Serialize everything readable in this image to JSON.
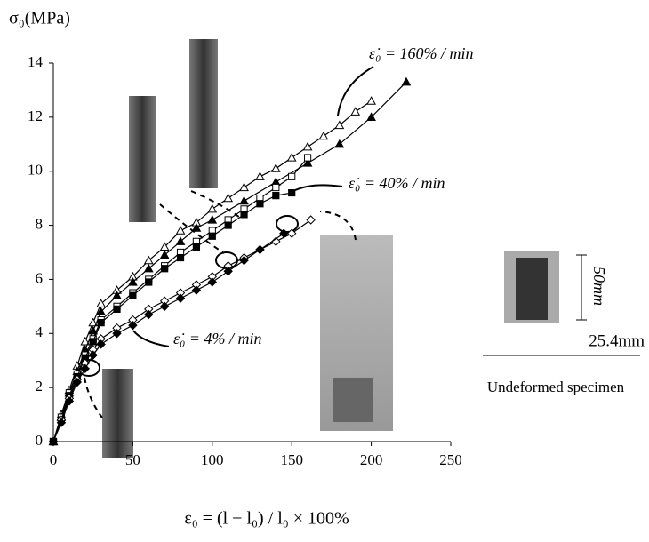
{
  "chart_data": {
    "type": "line",
    "y_label": "σ₀(MPa)",
    "x_label": "ε₀ = (l − l₀) / l₀ × 100%",
    "annotations": [
      "ε̇₀ = 160% / min",
      "ε̇₀ = 40% / min",
      "ε̇₀ = 4% / min",
      "50mm",
      "25.4mm",
      "Undeformed specimen"
    ],
    "xlim": [
      0,
      250
    ],
    "xticks": [
      0,
      50,
      100,
      150,
      200,
      250
    ],
    "ylim": [
      0,
      14
    ],
    "yticks": [
      0,
      2,
      4,
      6,
      8,
      10,
      12,
      14
    ],
    "grid": false,
    "series": [
      {
        "color": "#000000",
        "marker": "triangle",
        "filled": false,
        "x": [
          0,
          5,
          10,
          15,
          20,
          25,
          30,
          40,
          50,
          60,
          70,
          80,
          90,
          100,
          110,
          120,
          130,
          140,
          150,
          160,
          170,
          180,
          190,
          200
        ],
        "values": [
          0,
          1,
          1.9,
          2.8,
          3.7,
          4.4,
          5.1,
          5.6,
          6.1,
          6.7,
          7.2,
          7.8,
          8.1,
          8.6,
          9,
          9.4,
          9.8,
          10.1,
          10.5,
          10.9,
          11.3,
          11.7,
          12.2,
          12.6
        ]
      },
      {
        "color": "#000000",
        "marker": "triangle",
        "filled": true,
        "x": [
          0,
          5,
          10,
          15,
          20,
          25,
          30,
          40,
          50,
          60,
          70,
          80,
          90,
          100,
          120,
          140,
          160,
          180,
          200,
          222
        ],
        "values": [
          0,
          0.9,
          1.8,
          2.6,
          3.4,
          4.1,
          4.8,
          5.4,
          5.9,
          6.4,
          6.9,
          7.4,
          7.9,
          8.2,
          8.9,
          9.6,
          10.3,
          11,
          12,
          13.3
        ]
      },
      {
        "color": "#000000",
        "marker": "square",
        "filled": false,
        "x": [
          0,
          5,
          10,
          15,
          20,
          25,
          30,
          40,
          50,
          60,
          70,
          80,
          90,
          100,
          110,
          120,
          130,
          140,
          150,
          160
        ],
        "values": [
          0,
          0.9,
          1.8,
          2.5,
          3.2,
          3.8,
          4.5,
          5,
          5.5,
          6,
          6.5,
          7,
          7.4,
          7.8,
          8.2,
          8.6,
          9,
          9.4,
          9.8,
          10.5
        ]
      },
      {
        "color": "#000000",
        "marker": "square",
        "filled": true,
        "x": [
          0,
          5,
          10,
          15,
          20,
          25,
          30,
          40,
          50,
          60,
          70,
          80,
          90,
          100,
          110,
          120,
          130,
          140,
          150
        ],
        "values": [
          0,
          0.8,
          1.7,
          2.4,
          3.1,
          3.7,
          4.4,
          4.9,
          5.4,
          5.9,
          6.4,
          6.8,
          7.2,
          7.6,
          8,
          8.4,
          8.8,
          9.1,
          9.2
        ]
      },
      {
        "color": "#000000",
        "marker": "diamond",
        "filled": false,
        "x": [
          0,
          5,
          10,
          15,
          20,
          25,
          30,
          40,
          50,
          60,
          70,
          80,
          90,
          100,
          110,
          120,
          130,
          140,
          150,
          162
        ],
        "values": [
          0,
          0.8,
          1.6,
          2.3,
          2.9,
          3.4,
          3.8,
          4.2,
          4.5,
          4.9,
          5.2,
          5.5,
          5.8,
          6.1,
          6.5,
          6.8,
          7.1,
          7.4,
          7.7,
          8.2
        ]
      },
      {
        "color": "#000000",
        "marker": "diamond",
        "filled": true,
        "x": [
          0,
          5,
          10,
          15,
          20,
          25,
          30,
          40,
          50,
          60,
          70,
          80,
          90,
          100,
          110,
          120,
          130,
          145
        ],
        "values": [
          0,
          0.7,
          1.5,
          2.2,
          2.7,
          3.2,
          3.6,
          4,
          4.3,
          4.7,
          5,
          5.3,
          5.6,
          5.9,
          6.3,
          6.7,
          7.1,
          7.7
        ]
      }
    ]
  }
}
